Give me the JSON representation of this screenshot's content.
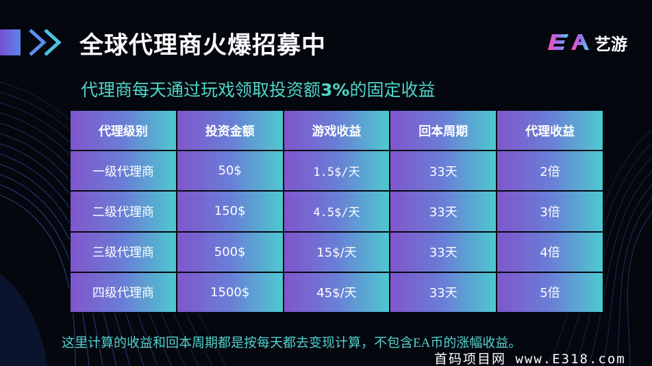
{
  "header": {
    "title": "全球代理商火爆招募中",
    "brand": "艺游",
    "logo_text": "EA"
  },
  "subtitle": {
    "prefix": "代理商每天通过玩戏领取投资额",
    "highlight": "3%",
    "suffix": "的固定收益"
  },
  "table": {
    "headers": [
      "代理级别",
      "投资金额",
      "游戏收益",
      "回本周期",
      "代理收益"
    ],
    "rows": [
      [
        "一级代理商",
        "50$",
        "1.5$/天",
        "33天",
        "2倍"
      ],
      [
        "二级代理商",
        "150$",
        "4.5$/天",
        "33天",
        "3倍"
      ],
      [
        "三级代理商",
        "500$",
        "15$/天",
        "33天",
        "4倍"
      ],
      [
        "四级代理商",
        "1500$",
        "45$/天",
        "33天",
        "5倍"
      ]
    ]
  },
  "footer": {
    "note": "这里计算的收益和回本周期都是按每天都去变现计算，不包含EA币的涨幅收益。"
  },
  "watermark": {
    "text": "首码项目网 www.E318.com"
  },
  "colors": {
    "accent_teal": "#4fd6c8",
    "cell_gradient_start": "#7f56cc",
    "cell_gradient_end": "#4dc9cf",
    "background": "#05070f"
  }
}
